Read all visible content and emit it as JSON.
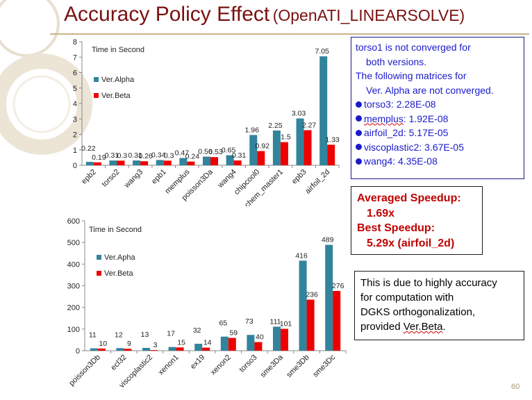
{
  "title": {
    "main": "Accuracy Policy Effect",
    "sub": "(OpenATI_LINEARSOLVE)"
  },
  "page_number": "60",
  "chart_data": [
    {
      "type": "bar",
      "annotation": "Time in Second",
      "categories": [
        "epb2",
        "torso2",
        "wang3",
        "epb1",
        "memplus",
        "poisson3Da",
        "wang4",
        "chipcool0",
        "chem_master1",
        "epb3",
        "airfoil_2d"
      ],
      "series": [
        {
          "name": "Ver.Alpha",
          "values": [
            0.22,
            0.31,
            0.31,
            0.34,
            0.47,
            0.56,
            0.65,
            1.96,
            2.25,
            3.03,
            7.05
          ],
          "labels": [
            "0.22",
            "0.31",
            "0.31",
            "0.34",
            "0.47",
            "0.56",
            "0.65",
            "1.96",
            "2.25",
            "3.03",
            "7.05"
          ]
        },
        {
          "name": "Ver.Beta",
          "values": [
            0.19,
            0.3,
            0.26,
            0.3,
            0.24,
            0.53,
            0.31,
            0.92,
            1.5,
            2.27,
            1.33
          ],
          "labels": [
            "0.19",
            "0.3",
            "0.26",
            "0.3",
            "0.24",
            "0.53",
            "0.31",
            "0.92",
            "1.5",
            "2.27",
            "1.33"
          ]
        }
      ],
      "ylim": [
        0,
        8
      ],
      "yticks": [
        "0",
        "1",
        "2",
        "3",
        "4",
        "5",
        "6",
        "7",
        "8"
      ],
      "grid": false,
      "legend": "left-inside"
    },
    {
      "type": "bar",
      "annotation": "Time in Second",
      "categories": [
        "poisson3Db",
        "ecl32",
        "viscoplastic2",
        "xenon1",
        "ex19",
        "xenon2",
        "torso3",
        "sme3Da",
        "sme3Db",
        "sme3Dc"
      ],
      "series": [
        {
          "name": "Ver.Apha",
          "values": [
            11,
            12,
            13,
            17,
            32,
            65,
            73,
            111,
            416,
            489
          ],
          "labels": [
            "11",
            "12",
            "13",
            "17",
            "32",
            "65",
            "73",
            "111",
            "416",
            "489"
          ]
        },
        {
          "name": "Ver.Beta",
          "values": [
            10,
            9,
            3,
            15,
            14,
            59,
            40,
            101,
            236,
            276
          ],
          "labels": [
            "10",
            "9",
            "3",
            "15",
            "14",
            "59",
            "40",
            "101",
            "236",
            "276"
          ]
        }
      ],
      "ylim": [
        0,
        600
      ],
      "yticks": [
        "0",
        "100",
        "200",
        "300",
        "400",
        "500",
        "600"
      ],
      "grid": false,
      "legend": "left-inside"
    }
  ],
  "colors": {
    "alpha": "#31849b",
    "beta": "#ee0000",
    "title": "#7a1010",
    "note_text": "#1a1acc",
    "speedup_text": "#c00000"
  },
  "notes": {
    "box1": {
      "line1": "torso1 is not converged for",
      "line2": "both versions.",
      "line3": "The following matrices for",
      "line4": "Ver. Alpha  are not converged.",
      "items": [
        {
          "name": "torso3",
          "value": " : 2.28E-08"
        },
        {
          "name": "memplus",
          "value": " : 1.92E-08"
        },
        {
          "name": "airfoil_2d",
          "value": " : 5.17E-05"
        },
        {
          "name": "viscoplastic2",
          "value": " : 3.67E-05"
        },
        {
          "name": "wang4",
          "value": " : 4.35E-08"
        }
      ]
    },
    "box2": {
      "l1": "Averaged Speedup:",
      "l2": "1.69x",
      "l3": "Best Speedup:",
      "l4": "5.29x  (airfoil_2d)"
    },
    "box3": {
      "l1": "This is due to highly accuracy",
      "l2": "for computation with",
      "l3": "DGKS orthogonalization,",
      "l4a": "provided ",
      "l4b": "Ver.Beta",
      "l4c": "."
    }
  }
}
